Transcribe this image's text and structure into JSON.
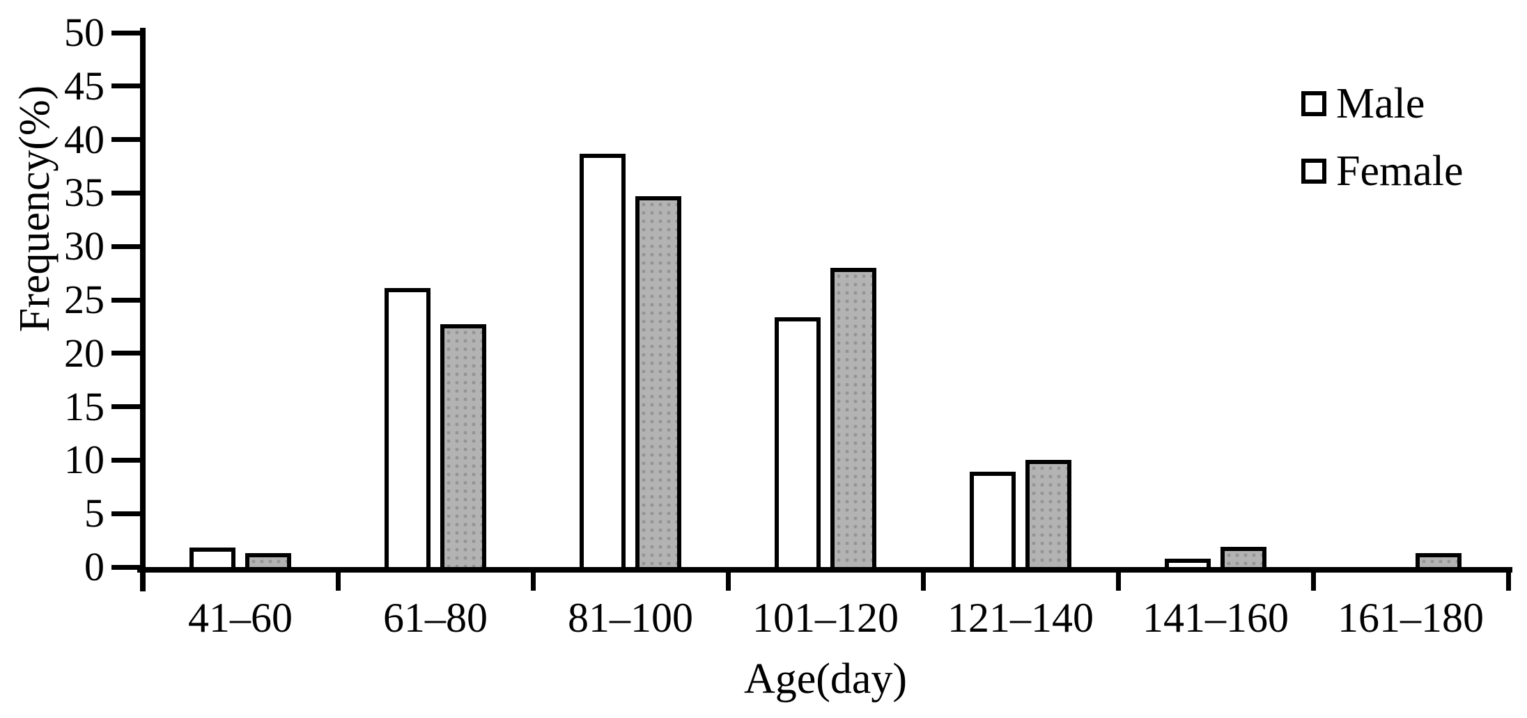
{
  "chart_data": {
    "type": "bar",
    "categories": [
      "41–60",
      "61–80",
      "81–100",
      "101–120",
      "121–140",
      "141–160",
      "161–180"
    ],
    "series": [
      {
        "name": "Male",
        "values": [
          1.8,
          26.1,
          38.7,
          23.4,
          8.9,
          0.8,
          0
        ],
        "fill": "#ffffff",
        "pattern": "none"
      },
      {
        "name": "Female",
        "values": [
          1.3,
          22.7,
          34.7,
          28.0,
          10.0,
          1.9,
          1.3
        ],
        "fill": "#b3b3b3",
        "pattern": "dots"
      }
    ],
    "xlabel": "Age(day)",
    "ylabel": "Frequency(%)",
    "ylim": [
      0,
      50
    ],
    "yticks": [
      0,
      5,
      10,
      15,
      20,
      25,
      30,
      35,
      40,
      45,
      50
    ],
    "grid": false,
    "legend_position": "top-right",
    "axis_color": "#000000",
    "bar_outline_color": "#000000",
    "background": "#ffffff"
  }
}
